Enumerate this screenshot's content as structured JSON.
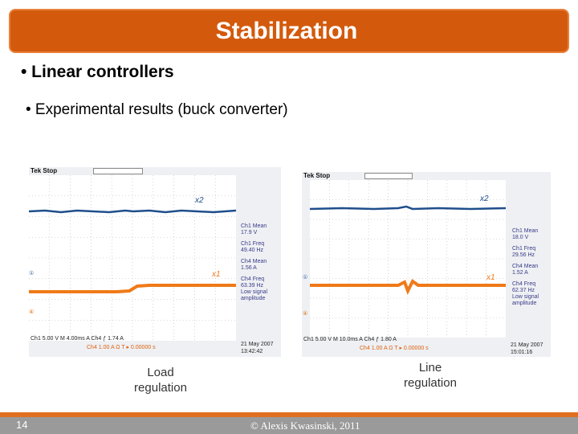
{
  "slide": {
    "title": "Stabilization",
    "bullet1": "• Linear controllers",
    "bullet2": "• Experimental results (buck converter)",
    "caption_left": [
      "Load",
      "regulation"
    ],
    "caption_right": [
      "Line",
      "regulation"
    ],
    "page_number": "14",
    "copyright": "© Alexis Kwasinski, 2011"
  },
  "scope_left": {
    "brand": "Tek Stop",
    "x2_label": "x2",
    "x1_label": "x1",
    "readouts": [
      "Ch1 Mean",
      "17.9 V",
      "Ch1 Freq",
      "49.40 Hz",
      "Ch4 Mean",
      "1.56 A",
      "Ch4 Freq",
      "63.39 Hz",
      "Low signal",
      "amplitude"
    ],
    "bottom1": "Ch1   5.00 V      M 4.00ms  A  Ch4  ƒ  1.74 A",
    "bottom2": "Ch4   1.00 A Ω   T ▸ 0.00000 s",
    "date": "21 May 2007",
    "time": "13:42:42",
    "colors": {
      "ch1": "#1f4e8c",
      "ch4": "#f07a18"
    }
  },
  "scope_right": {
    "brand": "Tek Stop",
    "x2_label": "x2",
    "x1_label": "x1",
    "readouts": [
      "Ch1 Mean",
      "18.0 V",
      "Ch1 Freq",
      "29.56 Hz",
      "Ch4 Mean",
      "1.52 A",
      "Ch4 Freq",
      "62.37 Hz",
      "Low signal",
      "amplitude"
    ],
    "bottom1": "Ch1   5.00 V      M 10.0ms  A  Ch4  ƒ  1.80 A",
    "bottom2": "Ch4   1.00 A Ω   T ▸ 0.00000 s",
    "date": "21 May 2007",
    "time": "15:01:16",
    "colors": {
      "ch1": "#1f4e8c",
      "ch4": "#f07a18"
    }
  }
}
